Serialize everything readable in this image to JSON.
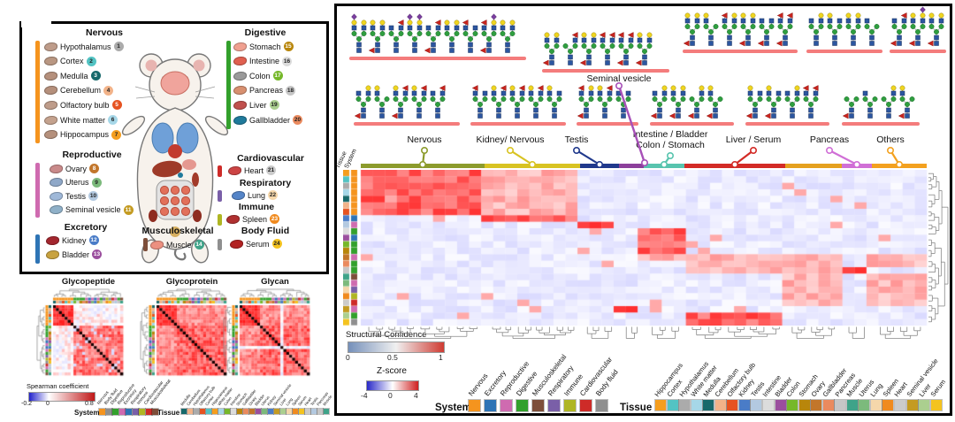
{
  "anatomy": {
    "systems": [
      {
        "name": "Nervous",
        "color": "#F5941E",
        "items": [
          {
            "label": "Hypothalamus",
            "num": "1",
            "badge": "#ABABAB",
            "icon": "#BE9C8A"
          },
          {
            "label": "Cortex",
            "num": "2",
            "badge": "#53C3C3",
            "icon": "#B99782"
          },
          {
            "label": "Medulla",
            "num": "3",
            "badge": "#17696B",
            "icon": "#B5907C"
          },
          {
            "label": "Cerebellum",
            "num": "4",
            "badge": "#F2B389",
            "icon": "#B5907C"
          },
          {
            "label": "Olfactory bulb",
            "num": "5",
            "badge": "#E65321",
            "icon": "#BE9C8A"
          },
          {
            "label": "White matter",
            "num": "6",
            "badge": "#A6D7E8",
            "icon": "#C4A28E"
          },
          {
            "label": "Hippocampus",
            "num": "7",
            "badge": "#F59E1E",
            "icon": "#B5907C"
          }
        ]
      },
      {
        "name": "Reproductive",
        "color": "#CF6BB0",
        "items": [
          {
            "label": "Ovary",
            "num": "8",
            "badge": "#C2762B",
            "icon": "#C98A8A"
          },
          {
            "label": "Uterus",
            "num": "9",
            "badge": "#7CBA7C",
            "icon": "#8FA8C8"
          },
          {
            "label": "Testis",
            "num": "10",
            "badge": "#B3C9E0",
            "icon": "#9FB8D8"
          },
          {
            "label": "Seminal vesicle",
            "num": "11",
            "badge": "#C49B22",
            "icon": "#8FB0C8"
          }
        ]
      },
      {
        "name": "Excretory",
        "color": "#2E74B5",
        "items": [
          {
            "label": "Kidney",
            "num": "12",
            "badge": "#4A7CC7",
            "icon": "#A3262E"
          },
          {
            "label": "Bladder",
            "num": "13",
            "badge": "#9B4F9E",
            "icon": "#C8A23F"
          }
        ]
      },
      {
        "name": "Digestive",
        "color": "#33A02C",
        "items": [
          {
            "label": "Stomach",
            "num": "15",
            "badge": "#B8860B",
            "icon": "#F0A090"
          },
          {
            "label": "Intestine",
            "num": "16",
            "badge": "#DCDCDC",
            "icon": "#E06050"
          },
          {
            "label": "Colon",
            "num": "17",
            "badge": "#76B82A",
            "icon": "#9A9A9A"
          },
          {
            "label": "Pancreas",
            "num": "18",
            "badge": "#C6C6C6",
            "icon": "#D89070"
          },
          {
            "label": "Liver",
            "num": "19",
            "badge": "#ABCF8F",
            "icon": "#C0504D"
          },
          {
            "label": "Gallbladder",
            "num": "20",
            "badge": "#EA8A5E",
            "icon": "#1F7A9B"
          }
        ]
      },
      {
        "name": "Cardiovascular",
        "color": "#CE2B28",
        "items": [
          {
            "label": "Heart",
            "num": "21",
            "badge": "#CBCBCB",
            "icon": "#CC4444"
          }
        ]
      },
      {
        "name": "Respiratory",
        "color": "#7A5FA8",
        "items": [
          {
            "label": "Lung",
            "num": "22",
            "badge": "#F5D7AB",
            "icon": "#5585C8"
          }
        ]
      },
      {
        "name": "Immune",
        "color": "#AFB623",
        "items": [
          {
            "label": "Spleen",
            "num": "23",
            "badge": "#F08A1E",
            "icon": "#B03030"
          }
        ]
      },
      {
        "name": "Body Fluid",
        "color": "#8F8F8F",
        "items": [
          {
            "label": "Serum",
            "num": "24",
            "badge": "#F4C31F",
            "icon": "#B22222"
          }
        ]
      },
      {
        "name": "Musculoskeletal",
        "color": "#7D4E3A",
        "items": [
          {
            "label": "Muscle",
            "num": "14",
            "badge": "#3FA389",
            "icon": "#EC9080"
          }
        ]
      }
    ]
  },
  "correlation_panel": {
    "titles": [
      "Glycopeptide",
      "Glycoprotein",
      "Glycan"
    ],
    "colorbar": {
      "title": "Spearman coefficient",
      "ticks": [
        "-0.2",
        "0",
        "0.8"
      ]
    },
    "system_legend": {
      "title": "System",
      "order": [
        "Nervous",
        "Body fluid",
        "Digestive",
        "Reproductive",
        "Excretory",
        "Respiratory",
        "Immune",
        "Cardiovascular",
        "Musculoskeletal"
      ]
    },
    "tissue_legend": {
      "title": "Tissue",
      "order": [
        "Medulla",
        "Cerebellum",
        "Hypothalamus",
        "Olfactory bulb",
        "Cortex",
        "Hippocampus",
        "White matter",
        "Colon",
        "Intestine",
        "Stomach",
        "Gallbladder",
        "Ovary",
        "Bladder",
        "Uterus",
        "Kidney",
        "Seminal vesicle",
        "Liver",
        "Lung",
        "Spleen",
        "Serum",
        "Heart",
        "Testis",
        "Pancreas",
        "Muscle"
      ]
    }
  },
  "main_panel": {
    "axis": {
      "col1": "Tissue",
      "col2": "System"
    },
    "seminal_callout": "Seminal vesicle",
    "clusters": [
      {
        "lines": [
          "Nervous"
        ],
        "color": "#8C9B2C"
      },
      {
        "lines": [
          "Kidney/ Nervous"
        ],
        "color": "#D8C322"
      },
      {
        "lines": [
          "Testis"
        ],
        "color": "#20398C"
      },
      {
        "lines": [],
        "color": "#8C3F9B"
      },
      {
        "lines": [
          "Intestine / Bladder",
          "Colon / Stomach"
        ],
        "color": "#58C4AE"
      },
      {
        "lines": [
          "Liver / Serum"
        ],
        "color": "#D32B26"
      },
      {
        "lines": [],
        "color": "#E5A11F"
      },
      {
        "lines": [
          "Pancreas"
        ],
        "color": "#D06FD6"
      },
      {
        "lines": [
          "Others"
        ],
        "color": "#F3A11F"
      }
    ],
    "structural_confidence": {
      "title": "Structural Confidence",
      "ticks": [
        "0",
        "0.5",
        "1"
      ]
    },
    "zscore": {
      "title": "Z-score",
      "ticks": [
        "-4",
        "0",
        "4"
      ]
    },
    "system_legend": {
      "title": "System",
      "order": [
        "Nervous",
        "Excretory",
        "Reproductive",
        "Digestive",
        "Musculoskeletal",
        "Respiratory",
        "Immune",
        "Cardiovascular",
        "Body fluid"
      ]
    },
    "tissue_legend": {
      "title": "Tissue",
      "order": [
        "Hippocampus",
        "Cortex",
        "Hypothalamus",
        "White matter",
        "Medulla",
        "Cerebellum",
        "Olfactory bulb",
        "Kidney",
        "Testis",
        "Intestine",
        "Bladder",
        "Colon",
        "Stomach",
        "Ovary",
        "Gallbladder",
        "Pancreas",
        "Muscle",
        "Uterus",
        "Lung",
        "Spleen",
        "Heart",
        "Seminal vesicle",
        "Liver",
        "Serum"
      ]
    }
  },
  "palette": {
    "system": {
      "Nervous": "#F5941E",
      "Excretory": "#2E74B5",
      "Reproductive": "#CF6BB0",
      "Digestive": "#33A02C",
      "Musculoskeletal": "#7D4E3A",
      "Respiratory": "#7A5FA8",
      "Immune": "#AFB623",
      "Cardiovascular": "#CE2B28",
      "Body fluid": "#8F8F8F"
    },
    "tissue": {
      "Hippocampus": "#F59E1E",
      "Cortex": "#53C3C3",
      "Hypothalamus": "#ABABAB",
      "White matter": "#A6D7E8",
      "Medulla": "#17696B",
      "Cerebellum": "#F2B389",
      "Olfactory bulb": "#E65321",
      "Kidney": "#4A7CC7",
      "Testis": "#B3C9E0",
      "Intestine": "#DCDCDC",
      "Bladder": "#9B4F9E",
      "Colon": "#76B82A",
      "Stomach": "#B8860B",
      "Ovary": "#C2762B",
      "Gallbladder": "#EA8A5E",
      "Pancreas": "#C6C6C6",
      "Muscle": "#3FA389",
      "Uterus": "#7CBA7C",
      "Lung": "#F5D7AB",
      "Spleen": "#F08A1E",
      "Heart": "#CBCBCB",
      "Seminal vesicle": "#C49B22",
      "Liver": "#ABCF8F",
      "Serum": "#F4C31F"
    },
    "glycan": {
      "GlcNAc": "#2C56A0",
      "Man": "#2F9E3F",
      "Gal": "#EFD520",
      "Fuc": "#C8241E",
      "Neu5Ac": "#7B3FA0"
    },
    "confidence_bar": "#F47C7C"
  },
  "tissue_system": {
    "Hippocampus": "Nervous",
    "Cortex": "Nervous",
    "Hypothalamus": "Nervous",
    "White matter": "Nervous",
    "Medulla": "Nervous",
    "Cerebellum": "Nervous",
    "Olfactory bulb": "Nervous",
    "Kidney": "Excretory",
    "Testis": "Reproductive",
    "Intestine": "Digestive",
    "Bladder": "Excretory",
    "Colon": "Digestive",
    "Stomach": "Digestive",
    "Ovary": "Reproductive",
    "Gallbladder": "Digestive",
    "Pancreas": "Digestive",
    "Muscle": "Musculoskeletal",
    "Uterus": "Reproductive",
    "Lung": "Respiratory",
    "Spleen": "Immune",
    "Heart": "Cardiovascular",
    "Seminal vesicle": "Reproductive",
    "Liver": "Digestive",
    "Serum": "Body fluid"
  },
  "chart_data": [
    {
      "type": "heatmap",
      "title": "Glycopeptide",
      "description": "24x24 tissue-tissue Spearman correlation matrix, hierarchically clustered. Brain tissues (Medulla, Cerebellum, Hypothalamus, Olfactory bulb, Cortex, Hippocampus, White matter) form a strongly correlated red block (~0.8-0.95); brain vs non-brain correlations are near 0 with scattered negative blue cells; non-brain tissues correlate ~0.3-0.8; diagonal = 1 (black).",
      "labels": [
        "Medulla",
        "Cerebellum",
        "Hypothalamus",
        "Olfactory bulb",
        "Cortex",
        "Hippocampus",
        "White matter",
        "Colon",
        "Intestine",
        "Stomach",
        "Gallbladder",
        "Ovary",
        "Bladder",
        "Uterus",
        "Kidney",
        "Seminal vesicle",
        "Liver",
        "Lung",
        "Spleen",
        "Serum",
        "Heart",
        "Testis",
        "Pancreas",
        "Muscle"
      ],
      "value_range": [
        -0.3,
        1
      ],
      "colorbar": {
        "label": "Spearman coefficient",
        "ticks": [
          -0.2,
          0,
          0.8
        ]
      }
    },
    {
      "type": "heatmap",
      "title": "Glycoprotein",
      "description": "24x24 tissue-tissue Spearman correlation matrix; almost uniformly positive (~0.4-0.9), brain-tissue block strongest; diagonal = 1 (black).",
      "labels": "same as Glycopeptide",
      "value_range": [
        -0.3,
        1
      ],
      "colorbar": {
        "label": "Spearman coefficient",
        "ticks": [
          -0.2,
          0,
          0.8
        ]
      }
    },
    {
      "type": "heatmap",
      "title": "Glycan",
      "description": "24x24 tissue-tissue Spearman correlation matrix; high positive overall (~0.5-0.9) with one low/negative (blue) streak for a single tissue (around Kidney); diagonal = 1 (black).",
      "labels": "same as Glycopeptide",
      "value_range": [
        -0.3,
        1
      ],
      "colorbar": {
        "label": "Spearman coefficient",
        "ticks": [
          -0.2,
          0,
          0.8
        ]
      }
    },
    {
      "type": "heatmap",
      "title": "Glycan structure abundance Z-score heatmap",
      "rows": [
        "Hippocampus",
        "Cortex",
        "Hypothalamus",
        "White matter",
        "Medulla",
        "Cerebellum",
        "Olfactory bulb",
        "Kidney",
        "Testis",
        "Intestine",
        "Bladder",
        "Colon",
        "Stomach",
        "Ovary",
        "Gallbladder",
        "Pancreas",
        "Muscle",
        "Uterus",
        "Lung",
        "Spleen",
        "Heart",
        "Seminal vesicle",
        "Liver",
        "Serum"
      ],
      "cols": "~47 glycan structures grouped by tissue-specific cluster; representative glycan cartoons (GlcNAc blue square, Man green circle, Gal yellow circle, Fuc red triangle, Neu5Ac purple diamond) drawn above each cluster with a structural-confidence underline",
      "value_range": [
        -4,
        4
      ],
      "col_clusters": [
        {
          "name": "Nervous",
          "high_z_rows": [
            "Hippocampus",
            "Cortex",
            "Hypothalamus",
            "White matter",
            "Medulla",
            "Cerebellum",
            "Olfactory bulb"
          ]
        },
        {
          "name": "Kidney/ Nervous",
          "high_z_rows": [
            "Kidney"
          ],
          "moderate_rows": [
            "Hippocampus",
            "Cortex",
            "Hypothalamus",
            "White matter",
            "Medulla",
            "Cerebellum",
            "Olfactory bulb"
          ]
        },
        {
          "name": "Testis",
          "high_z_rows": [
            "Testis"
          ]
        },
        {
          "name": "Seminal vesicle",
          "high_z_rows": [
            "Seminal vesicle"
          ]
        },
        {
          "name": "Intestine / Bladder / Colon / Stomach",
          "high_z_rows": [
            "Intestine",
            "Bladder",
            "Colon",
            "Stomach"
          ]
        },
        {
          "name": "Liver / Serum",
          "high_z_rows": [
            "Liver",
            "Serum"
          ]
        },
        {
          "name": "Pancreas",
          "high_z_rows": [
            "Pancreas"
          ]
        },
        {
          "name": "Others",
          "high_z_rows": [
            "Ovary",
            "Gallbladder",
            "Muscle",
            "Uterus",
            "Lung",
            "Spleen",
            "Heart"
          ]
        }
      ],
      "colorbars": [
        {
          "label": "Structural Confidence",
          "ticks": [
            0,
            0.5,
            1
          ]
        },
        {
          "label": "Z-score",
          "ticks": [
            -4,
            0,
            4
          ]
        }
      ]
    }
  ]
}
